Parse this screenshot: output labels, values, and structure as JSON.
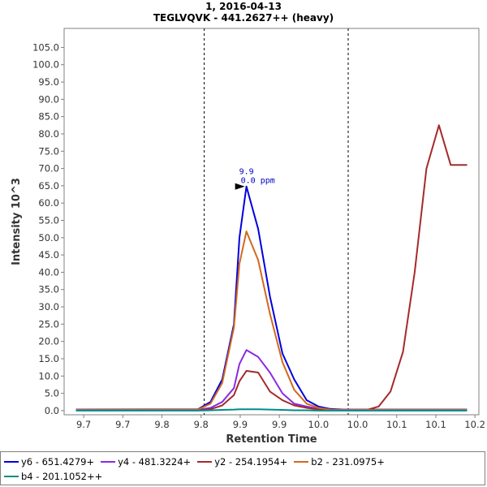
{
  "chart_data": {
    "type": "line",
    "title": "1, 2016-04-13",
    "subtitle": "TEGLVQVK - 441.2627++ (heavy)",
    "xlabel": "Retention Time",
    "ylabel": "Intensity 10^3",
    "xlim": [
      9.675,
      10.205
    ],
    "ylim": [
      -1.2,
      110.5
    ],
    "x_tick_values": [
      9.7,
      9.75,
      9.8,
      9.85,
      9.9,
      9.95,
      10.0,
      10.05,
      10.1,
      10.15,
      10.2
    ],
    "x_tick_labels": [
      "9.7",
      "9.7",
      "9.8",
      "9.8",
      "9.9",
      "9.9",
      "10.0",
      "10.0",
      "10.1",
      "10.1",
      "10.2"
    ],
    "y_ticks": [
      0.0,
      5.0,
      10.0,
      15.0,
      20.0,
      25.0,
      30.0,
      35.0,
      40.0,
      45.0,
      50.0,
      55.0,
      60.0,
      65.0,
      70.0,
      75.0,
      80.0,
      85.0,
      90.0,
      95.0,
      100.0,
      105.0
    ],
    "y_tick_labels": [
      "0.0",
      "5.0",
      "10.0",
      "15.0",
      "20.0",
      "25.0",
      "30.0",
      "35.0",
      "40.0",
      "45.0",
      "50.0",
      "55.0",
      "60.0",
      "65.0",
      "70.0",
      "75.0",
      "80.0",
      "85.0",
      "90.0",
      "95.0",
      "100.0",
      "105.0"
    ],
    "integration_boundaries": [
      9.854,
      10.038
    ],
    "annotation": {
      "x": 9.908,
      "y": 64.8,
      "line1": "9.9",
      "line2": "0.0 ppm"
    },
    "grid": false,
    "legend_position": "bottom",
    "series": [
      {
        "name": "y6 - 651.4279+",
        "color": "#0000e0",
        "x": [
          9.69,
          9.846,
          9.862,
          9.877,
          9.892,
          9.899,
          9.908,
          9.923,
          9.938,
          9.954,
          9.969,
          9.985,
          10.0,
          10.015,
          10.031,
          10.046,
          10.062,
          10.077,
          10.092,
          10.108,
          10.123,
          10.138,
          10.154,
          10.169,
          10.185,
          10.19
        ],
        "values": [
          0.3,
          0.4,
          2.5,
          9.0,
          25.0,
          50.0,
          64.8,
          52.5,
          33.0,
          16.5,
          9.0,
          3.0,
          1.2,
          0.5,
          0.3,
          0.3,
          0.3,
          0.3,
          0.3,
          0.3,
          0.3,
          0.3,
          0.3,
          0.3,
          0.3,
          0.3
        ]
      },
      {
        "name": "y4 - 481.3224+",
        "color": "#8a2be2",
        "x": [
          9.69,
          9.846,
          9.862,
          9.877,
          9.892,
          9.899,
          9.908,
          9.923,
          9.938,
          9.954,
          9.969,
          9.985,
          10.0,
          10.015,
          10.031,
          10.046,
          10.062,
          10.077,
          10.092,
          10.108,
          10.123,
          10.138,
          10.154,
          10.169,
          10.185,
          10.19
        ],
        "values": [
          0.2,
          0.2,
          0.8,
          2.5,
          6.5,
          13.5,
          17.5,
          15.5,
          11.0,
          5.0,
          2.0,
          1.2,
          0.5,
          0.2,
          0.2,
          0.2,
          0.2,
          0.2,
          0.2,
          0.2,
          0.2,
          0.2,
          0.2,
          0.2,
          0.2,
          0.2
        ]
      },
      {
        "name": "y2 - 254.1954+",
        "color": "#a52a2a",
        "x": [
          9.69,
          9.846,
          9.862,
          9.877,
          9.892,
          9.899,
          9.908,
          9.923,
          9.938,
          9.954,
          9.969,
          9.985,
          10.0,
          10.015,
          10.031,
          10.046,
          10.062,
          10.077,
          10.092,
          10.108,
          10.123,
          10.138,
          10.154,
          10.169,
          10.185,
          10.19
        ],
        "values": [
          0.1,
          0.1,
          0.4,
          1.5,
          4.5,
          8.5,
          11.5,
          11.0,
          5.5,
          3.0,
          1.5,
          0.8,
          0.3,
          0.2,
          0.1,
          0.1,
          0.2,
          1.2,
          5.5,
          17.0,
          40.0,
          70.0,
          82.5,
          71.0,
          71.0,
          71.0
        ]
      },
      {
        "name": "b2 - 231.0975+",
        "color": "#d2691e",
        "x": [
          9.69,
          9.846,
          9.862,
          9.877,
          9.892,
          9.899,
          9.908,
          9.923,
          9.938,
          9.954,
          9.969,
          9.985,
          10.0,
          10.015,
          10.031,
          10.046,
          10.062,
          10.077,
          10.092,
          10.108,
          10.123,
          10.138,
          10.154,
          10.169,
          10.185,
          10.19
        ],
        "values": [
          0.2,
          0.3,
          2.0,
          8.0,
          24.0,
          42.5,
          51.8,
          43.5,
          28.0,
          14.0,
          6.0,
          2.0,
          0.8,
          0.3,
          0.2,
          0.2,
          0.2,
          0.2,
          0.2,
          0.2,
          0.2,
          0.2,
          0.2,
          0.2,
          0.2,
          0.2
        ]
      },
      {
        "name": "b4 - 201.1052++",
        "color": "#008b8b",
        "x": [
          9.69,
          9.846,
          9.862,
          9.877,
          9.892,
          9.899,
          9.908,
          9.923,
          9.938,
          9.954,
          9.969,
          9.985,
          10.0,
          10.015,
          10.031,
          10.046,
          10.062,
          10.077,
          10.092,
          10.108,
          10.123,
          10.138,
          10.154,
          10.169,
          10.185,
          10.19
        ],
        "values": [
          0.0,
          0.0,
          0.1,
          0.2,
          0.3,
          0.4,
          0.4,
          0.4,
          0.3,
          0.2,
          0.1,
          0.1,
          0.0,
          0.0,
          0.0,
          0.0,
          0.0,
          0.0,
          0.0,
          0.0,
          0.0,
          0.0,
          0.0,
          0.0,
          0.0,
          0.0
        ]
      }
    ]
  }
}
